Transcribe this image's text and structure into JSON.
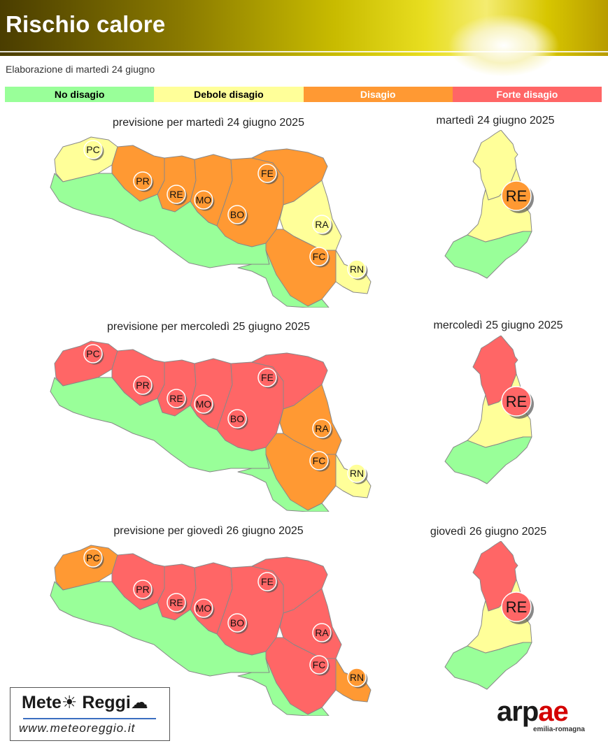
{
  "header": {
    "title": "Rischio calore"
  },
  "elaboration": "Elaborazione di martedì 24 giugno",
  "legend": [
    {
      "label": "No disagio",
      "color": "#99ff99",
      "text_color": "#000000"
    },
    {
      "label": "Debole disagio",
      "color": "#ffff99",
      "text_color": "#000000"
    },
    {
      "label": "Disagio",
      "color": "#ff9933",
      "text_color": "#ffffff"
    },
    {
      "label": "Forte disagio",
      "color": "#ff6666",
      "text_color": "#ffffff"
    }
  ],
  "forecasts": [
    {
      "region_title": "previsione per martedì 24 giugno 2025",
      "province_title": "martedì 24 giugno 2025",
      "cities": [
        {
          "code": "PC",
          "level": 1
        },
        {
          "code": "PR",
          "level": 2
        },
        {
          "code": "RE",
          "level": 2
        },
        {
          "code": "MO",
          "level": 2
        },
        {
          "code": "BO",
          "level": 2
        },
        {
          "code": "FE",
          "level": 2
        },
        {
          "code": "RA",
          "level": 1
        },
        {
          "code": "FC",
          "level": 2
        },
        {
          "code": "RN",
          "level": 1
        }
      ],
      "province": {
        "code": "RE",
        "level": 2,
        "north": 1,
        "middle": 1,
        "south": 0
      }
    },
    {
      "region_title": "previsione per mercoledì 25 giugno 2025",
      "province_title": "mercoledì 25 giugno 2025",
      "cities": [
        {
          "code": "PC",
          "level": 3
        },
        {
          "code": "PR",
          "level": 3
        },
        {
          "code": "RE",
          "level": 3
        },
        {
          "code": "MO",
          "level": 3
        },
        {
          "code": "BO",
          "level": 3
        },
        {
          "code": "FE",
          "level": 3
        },
        {
          "code": "RA",
          "level": 2
        },
        {
          "code": "FC",
          "level": 2
        },
        {
          "code": "RN",
          "level": 1
        }
      ],
      "province": {
        "code": "RE",
        "level": 3,
        "north": 3,
        "middle": 1,
        "south": 0
      }
    },
    {
      "region_title": "previsione per giovedì 26 giugno 2025",
      "province_title": "giovedì 26 giugno 2025",
      "cities": [
        {
          "code": "PC",
          "level": 2
        },
        {
          "code": "PR",
          "level": 3
        },
        {
          "code": "RE",
          "level": 3
        },
        {
          "code": "MO",
          "level": 3
        },
        {
          "code": "BO",
          "level": 3
        },
        {
          "code": "FE",
          "level": 3
        },
        {
          "code": "RA",
          "level": 3
        },
        {
          "code": "FC",
          "level": 3
        },
        {
          "code": "RN",
          "level": 2
        }
      ],
      "province": {
        "code": "RE",
        "level": 3,
        "north": 3,
        "middle": 1,
        "south": 0
      }
    }
  ],
  "logos": {
    "meteoreggio_name": "Mete☀ Reggi☁",
    "meteoreggio_url": "www.meteoreggio.it",
    "arpae_a": "arp",
    "arpae_b": "ae",
    "arpae_sub": "emilia-romagna"
  }
}
